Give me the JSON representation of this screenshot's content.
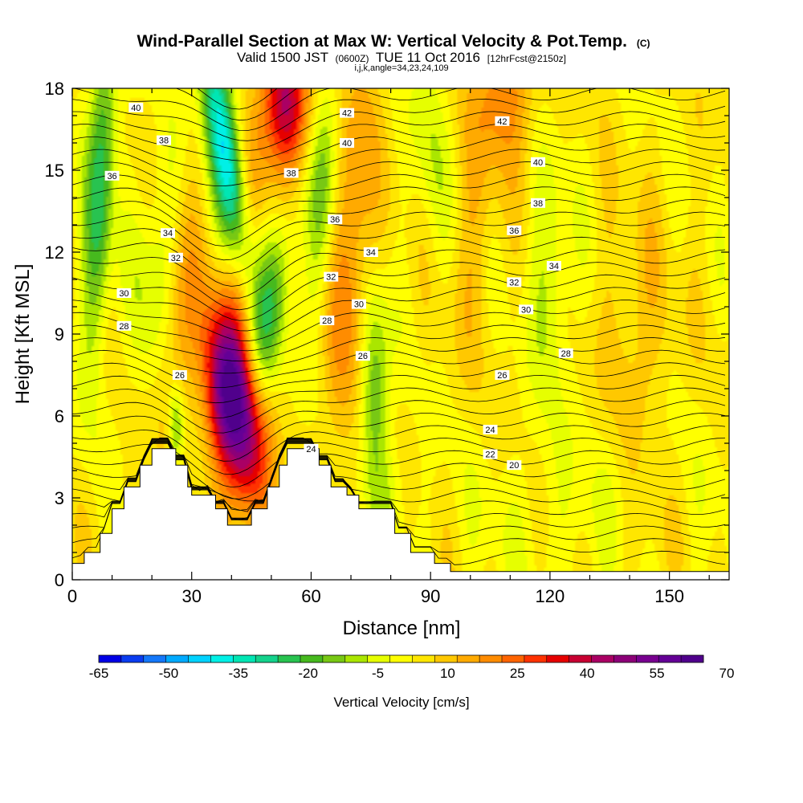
{
  "header": {
    "title": "Wind-Parallel Section at Max W: Vertical Velocity & Pot.Temp.",
    "title_unit": "(C)",
    "valid_prefix": "Valid 1500 JST",
    "valid_utc": "(0600Z)",
    "valid_date": "TUE 11 Oct 2016",
    "forecast": "[12hrFcst@2150z]",
    "indices": "i,j,k,angle=34,23,24,109"
  },
  "chart_data": {
    "type": "heatmap",
    "xlabel": "Distance [nm]",
    "ylabel": "Height [Kft MSL]",
    "xlim": [
      0,
      165
    ],
    "ylim": [
      0,
      18
    ],
    "x_ticks": [
      0,
      30,
      60,
      90,
      120,
      150
    ],
    "y_ticks": [
      0,
      3,
      6,
      9,
      12,
      15,
      18
    ],
    "colorbar": {
      "label": "Vertical Velocity [cm/s]",
      "min": -65,
      "max": 70,
      "step": 5,
      "tick_labels": [
        -65,
        -50,
        -35,
        -20,
        -5,
        10,
        25,
        40,
        55,
        70
      ],
      "colors": [
        "#0000e6",
        "#0a3cf0",
        "#1478fa",
        "#00aaff",
        "#00d2ff",
        "#00f0e6",
        "#00e6b4",
        "#14d28c",
        "#28c350",
        "#46b91e",
        "#78c814",
        "#aae600",
        "#e6ff00",
        "#ffff00",
        "#ffe600",
        "#ffc800",
        "#ffaa00",
        "#ff8c00",
        "#ff6400",
        "#ff3200",
        "#e60000",
        "#c80032",
        "#aa0064",
        "#8c0078",
        "#780090",
        "#640096",
        "#50008c"
      ]
    },
    "theta_contour_labels": [
      {
        "value": 40,
        "x": 16,
        "y": 17.3
      },
      {
        "value": 38,
        "x": 23,
        "y": 16.1
      },
      {
        "value": 36,
        "x": 10,
        "y": 14.8
      },
      {
        "value": 34,
        "x": 24,
        "y": 12.7
      },
      {
        "value": 32,
        "x": 26,
        "y": 11.8
      },
      {
        "value": 30,
        "x": 13,
        "y": 10.5
      },
      {
        "value": 28,
        "x": 13,
        "y": 9.3
      },
      {
        "value": 26,
        "x": 27,
        "y": 7.5
      },
      {
        "value": 42,
        "x": 69,
        "y": 17.1
      },
      {
        "value": 42,
        "x": 108,
        "y": 16.8
      },
      {
        "value": 40,
        "x": 69,
        "y": 16.0
      },
      {
        "value": 40,
        "x": 117,
        "y": 15.3
      },
      {
        "value": 38,
        "x": 55,
        "y": 14.9
      },
      {
        "value": 38,
        "x": 117,
        "y": 13.8
      },
      {
        "value": 36,
        "x": 66,
        "y": 13.2
      },
      {
        "value": 36,
        "x": 111,
        "y": 12.8
      },
      {
        "value": 34,
        "x": 75,
        "y": 12.0
      },
      {
        "value": 34,
        "x": 121,
        "y": 11.5
      },
      {
        "value": 32,
        "x": 65,
        "y": 11.1
      },
      {
        "value": 32,
        "x": 111,
        "y": 10.9
      },
      {
        "value": 30,
        "x": 72,
        "y": 10.1
      },
      {
        "value": 30,
        "x": 114,
        "y": 9.9
      },
      {
        "value": 28,
        "x": 64,
        "y": 9.5
      },
      {
        "value": 28,
        "x": 124,
        "y": 8.3
      },
      {
        "value": 26,
        "x": 73,
        "y": 8.2
      },
      {
        "value": 26,
        "x": 108,
        "y": 7.5
      },
      {
        "value": 24,
        "x": 105,
        "y": 5.5
      },
      {
        "value": 24,
        "x": 60,
        "y": 4.8
      },
      {
        "value": 22,
        "x": 105,
        "y": 4.6
      },
      {
        "value": 20,
        "x": 111,
        "y": 4.2
      }
    ],
    "terrain": [
      [
        0,
        0.6
      ],
      [
        3,
        0.6
      ],
      [
        3,
        1.0
      ],
      [
        7,
        1.0
      ],
      [
        7,
        1.7
      ],
      [
        10,
        1.7
      ],
      [
        10,
        2.6
      ],
      [
        13,
        2.6
      ],
      [
        13,
        3.4
      ],
      [
        17,
        3.4
      ],
      [
        17,
        4.2
      ],
      [
        20,
        4.2
      ],
      [
        20,
        4.8
      ],
      [
        26,
        4.8
      ],
      [
        26,
        4.2
      ],
      [
        29,
        4.2
      ],
      [
        29,
        3.4
      ],
      [
        30,
        3.4
      ],
      [
        30,
        3.1
      ],
      [
        33,
        3.1
      ],
      [
        33,
        3.1
      ],
      [
        36,
        3.1
      ],
      [
        36,
        2.6
      ],
      [
        39,
        2.6
      ],
      [
        39,
        2.0
      ],
      [
        45,
        2.0
      ],
      [
        45,
        2.6
      ],
      [
        49,
        2.6
      ],
      [
        49,
        3.4
      ],
      [
        52,
        3.4
      ],
      [
        52,
        4.2
      ],
      [
        54,
        4.2
      ],
      [
        54,
        4.8
      ],
      [
        62,
        4.8
      ],
      [
        62,
        4.2
      ],
      [
        65,
        4.2
      ],
      [
        65,
        3.4
      ],
      [
        69,
        3.4
      ],
      [
        69,
        3.1
      ],
      [
        72,
        3.1
      ],
      [
        72,
        2.6
      ],
      [
        81,
        2.6
      ],
      [
        81,
        1.7
      ],
      [
        85,
        1.7
      ],
      [
        85,
        1.0
      ],
      [
        91,
        1.0
      ],
      [
        91,
        0.6
      ],
      [
        95,
        0.6
      ],
      [
        95,
        0.3
      ],
      [
        165,
        0.3
      ]
    ],
    "w_features": [
      {
        "x": 41,
        "y": 6.2,
        "sx": 4.5,
        "sy": 2.4,
        "w": 70,
        "rot": -0.25
      },
      {
        "x": 54,
        "y": 17.5,
        "sx": 4.0,
        "sy": 1.8,
        "w": 40,
        "rot": -0.1
      },
      {
        "x": 44,
        "y": 13.0,
        "sx": 3.5,
        "sy": 4.5,
        "w": 12,
        "rot": 0.35
      },
      {
        "x": 70,
        "y": 12.0,
        "sx": 3.5,
        "sy": 5.0,
        "w": 18,
        "rot": 0.15
      },
      {
        "x": 27,
        "y": 9.5,
        "sx": 3.0,
        "sy": 4.0,
        "w": 14,
        "rot": 0.1
      },
      {
        "x": 38,
        "y": 16.0,
        "sx": 3.0,
        "sy": 3.5,
        "w": -45,
        "rot": -0.35
      },
      {
        "x": 7,
        "y": 14.5,
        "sx": 2.5,
        "sy": 4.5,
        "w": -30,
        "rot": 0.1
      },
      {
        "x": 21,
        "y": 11.5,
        "sx": 4.0,
        "sy": 3.0,
        "w": -12,
        "rot": 0.2
      },
      {
        "x": 49,
        "y": 9.5,
        "sx": 3.5,
        "sy": 3.0,
        "w": -22,
        "rot": 0.4
      },
      {
        "x": 76,
        "y": 7.0,
        "sx": 2.5,
        "sy": 2.5,
        "w": -22,
        "rot": 0.0
      },
      {
        "x": 63,
        "y": 14.5,
        "sx": 2.5,
        "sy": 3.0,
        "w": -18,
        "rot": 0.1
      },
      {
        "x": 90,
        "y": 16.0,
        "sx": 3.0,
        "sy": 3.0,
        "w": -10,
        "rot": -0.1
      },
      {
        "x": 120,
        "y": 11.0,
        "sx": 4.0,
        "sy": 3.0,
        "w": -12,
        "rot": 0.0
      },
      {
        "x": 26,
        "y": 5.5,
        "sx": 1.5,
        "sy": 1.2,
        "w": -25,
        "rot": 0.0
      },
      {
        "x": 109,
        "y": 18.0,
        "sx": 5.0,
        "sy": 2.0,
        "w": 18,
        "rot": 0.0
      },
      {
        "x": 101,
        "y": 13.0,
        "sx": 4.0,
        "sy": 3.5,
        "w": 8,
        "rot": 0.1
      },
      {
        "x": 142,
        "y": 9.0,
        "sx": 6.0,
        "sy": 3.0,
        "w": 8,
        "rot": 0.0
      },
      {
        "x": 80,
        "y": 3.0,
        "sx": 3.0,
        "sy": 1.5,
        "w": -8,
        "rot": 0.0
      },
      {
        "x": 130,
        "y": 2.0,
        "sx": 25.0,
        "sy": 2.5,
        "w": -5,
        "rot": 0.0
      },
      {
        "x": 145,
        "y": 1.5,
        "sx": 6.0,
        "sy": 1.5,
        "w": 6,
        "rot": 0.0
      }
    ]
  }
}
